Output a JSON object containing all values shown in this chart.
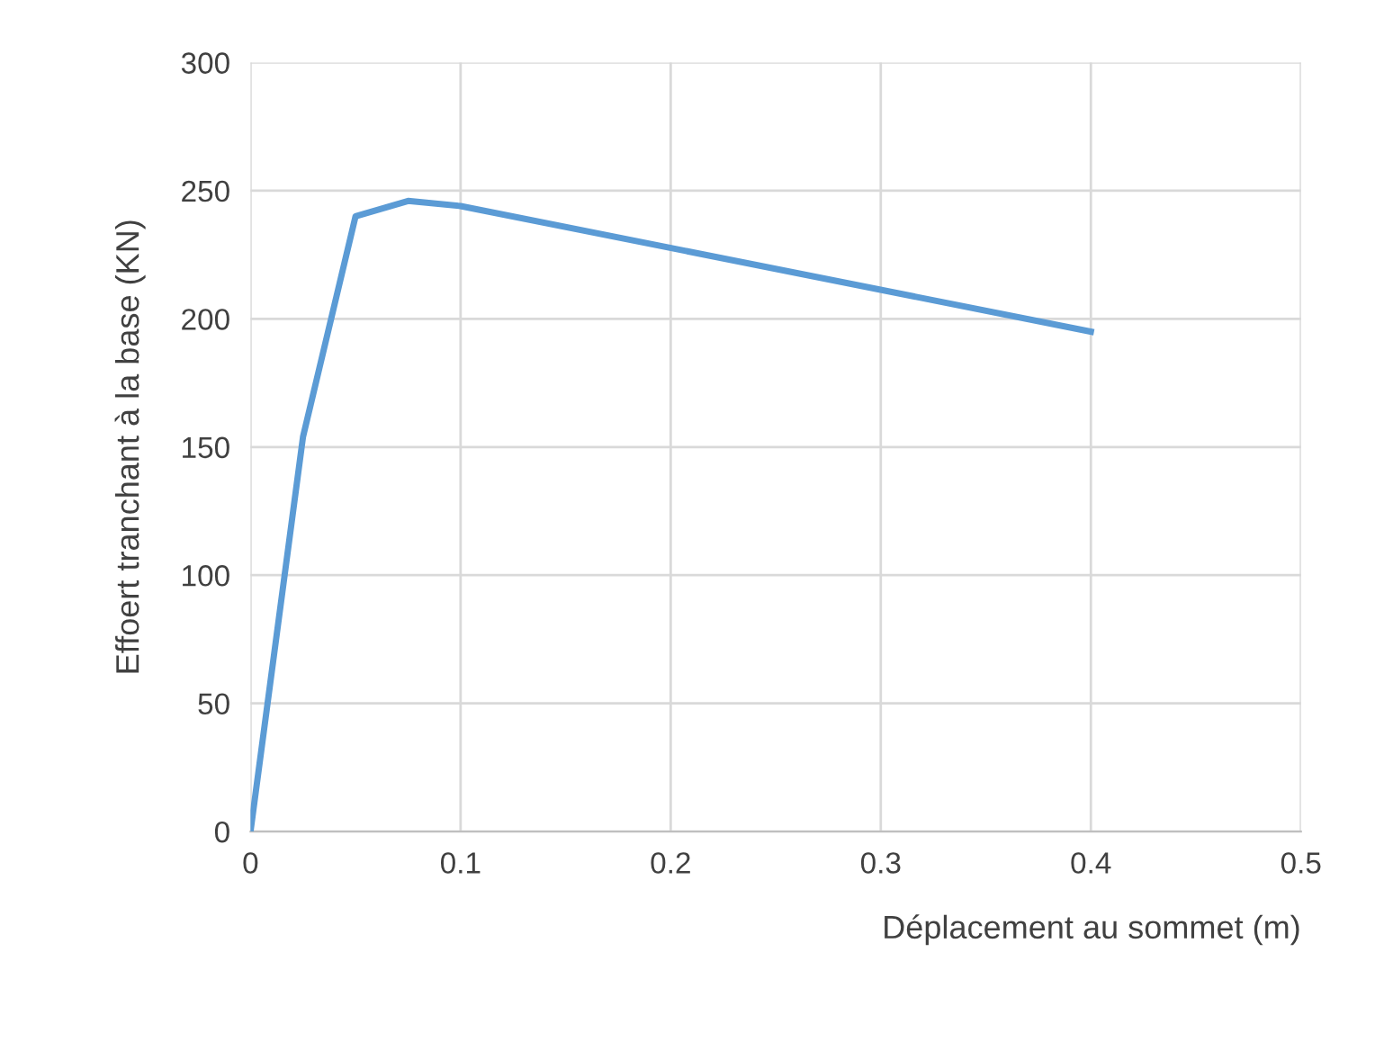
{
  "chart_data": {
    "type": "line",
    "xlabel": "Déplacement au sommet (m)",
    "ylabel": "Effoert tranchant à la base (KN)",
    "x": [
      0,
      0.025,
      0.05,
      0.075,
      0.1,
      0.4
    ],
    "series": [
      {
        "color": "#5b9bd5",
        "values": [
          0,
          154,
          240,
          246,
          244,
          195
        ]
      }
    ],
    "xlim": [
      0,
      0.5
    ],
    "xticks": [
      0,
      0.1,
      0.2,
      0.3,
      0.4,
      0.5
    ],
    "ylim": [
      0,
      300
    ],
    "yticks": [
      0,
      50,
      100,
      150,
      200,
      250,
      300
    ],
    "grid": true,
    "marker": "none",
    "line_style": "solid"
  }
}
